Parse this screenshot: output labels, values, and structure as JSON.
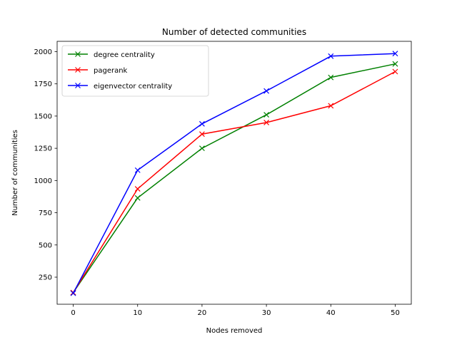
{
  "chart_data": {
    "type": "line",
    "title": "Number of detected communities",
    "xlabel": "Nodes removed",
    "ylabel": "Number of communities",
    "x": [
      0,
      10,
      20,
      30,
      40,
      50
    ],
    "xlim": [
      -2.5,
      52.5
    ],
    "ylim": [
      40,
      2080
    ],
    "xticks": [
      0,
      10,
      20,
      30,
      40,
      50
    ],
    "yticks": [
      250,
      500,
      750,
      1000,
      1250,
      1500,
      1750,
      2000
    ],
    "grid": false,
    "legend_position": "upper left",
    "marker": "x",
    "series": [
      {
        "name": "degree centrality",
        "color": "#008000",
        "values": [
          130,
          865,
          1250,
          1510,
          1800,
          1905
        ]
      },
      {
        "name": "pagerank",
        "color": "#ff0000",
        "values": [
          130,
          935,
          1360,
          1450,
          1580,
          1845
        ]
      },
      {
        "name": "eigenvector centrality",
        "color": "#0000ff",
        "values": [
          125,
          1080,
          1440,
          1695,
          1965,
          1985
        ]
      }
    ]
  }
}
